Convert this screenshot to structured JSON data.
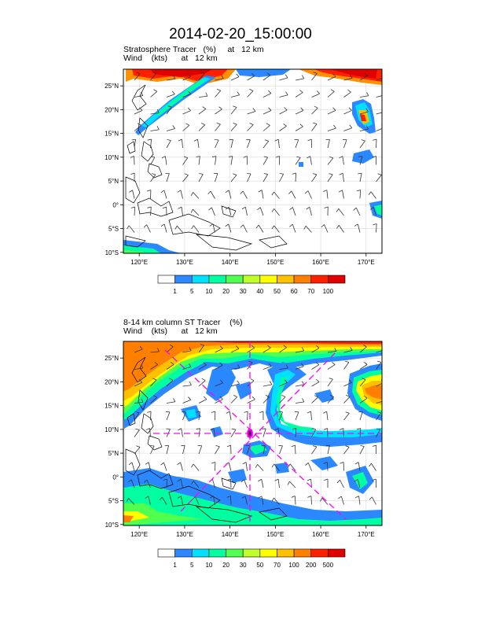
{
  "title": "2014-02-20_15:00:00",
  "panel1": {
    "line1": "Stratosphere Tracer   (%)     at   12 km",
    "line2": "Wind    (kts)      at   12 km",
    "cb_labels": [
      "1",
      "5",
      "10",
      "20",
      "30",
      "40",
      "50",
      "60",
      "70",
      "100"
    ],
    "cb_colors": [
      "#ffffff",
      "#2b88ff",
      "#00e0ff",
      "#00ffa0",
      "#50ff50",
      "#c0ff2a",
      "#ffff00",
      "#ffc000",
      "#ff8000",
      "#ff2000",
      "#e00000"
    ]
  },
  "panel2": {
    "line1": "8-14 km column ST Tracer    (%)",
    "line2": "Wind    (kts)      at   12 km",
    "cb_labels": [
      "1",
      "5",
      "10",
      "20",
      "30",
      "50",
      "70",
      "100",
      "200",
      "500"
    ],
    "cb_colors": [
      "#ffffff",
      "#2b88ff",
      "#00e0ff",
      "#00ffa0",
      "#50ff50",
      "#c0ff2a",
      "#ffff00",
      "#ffc000",
      "#ff8000",
      "#ff2000",
      "#e00000"
    ]
  },
  "lon_labels": [
    "120°E",
    "130°E",
    "140°E",
    "150°E",
    "160°E",
    "170°E"
  ],
  "lat_labels": [
    "25°N",
    "20°N",
    "15°N",
    "10°N",
    "5°N",
    "0°",
    "5°S",
    "10°S"
  ],
  "colors": {
    "cross": "#ff00ff",
    "coast": "#000000",
    "grid": "#cccccc"
  }
}
